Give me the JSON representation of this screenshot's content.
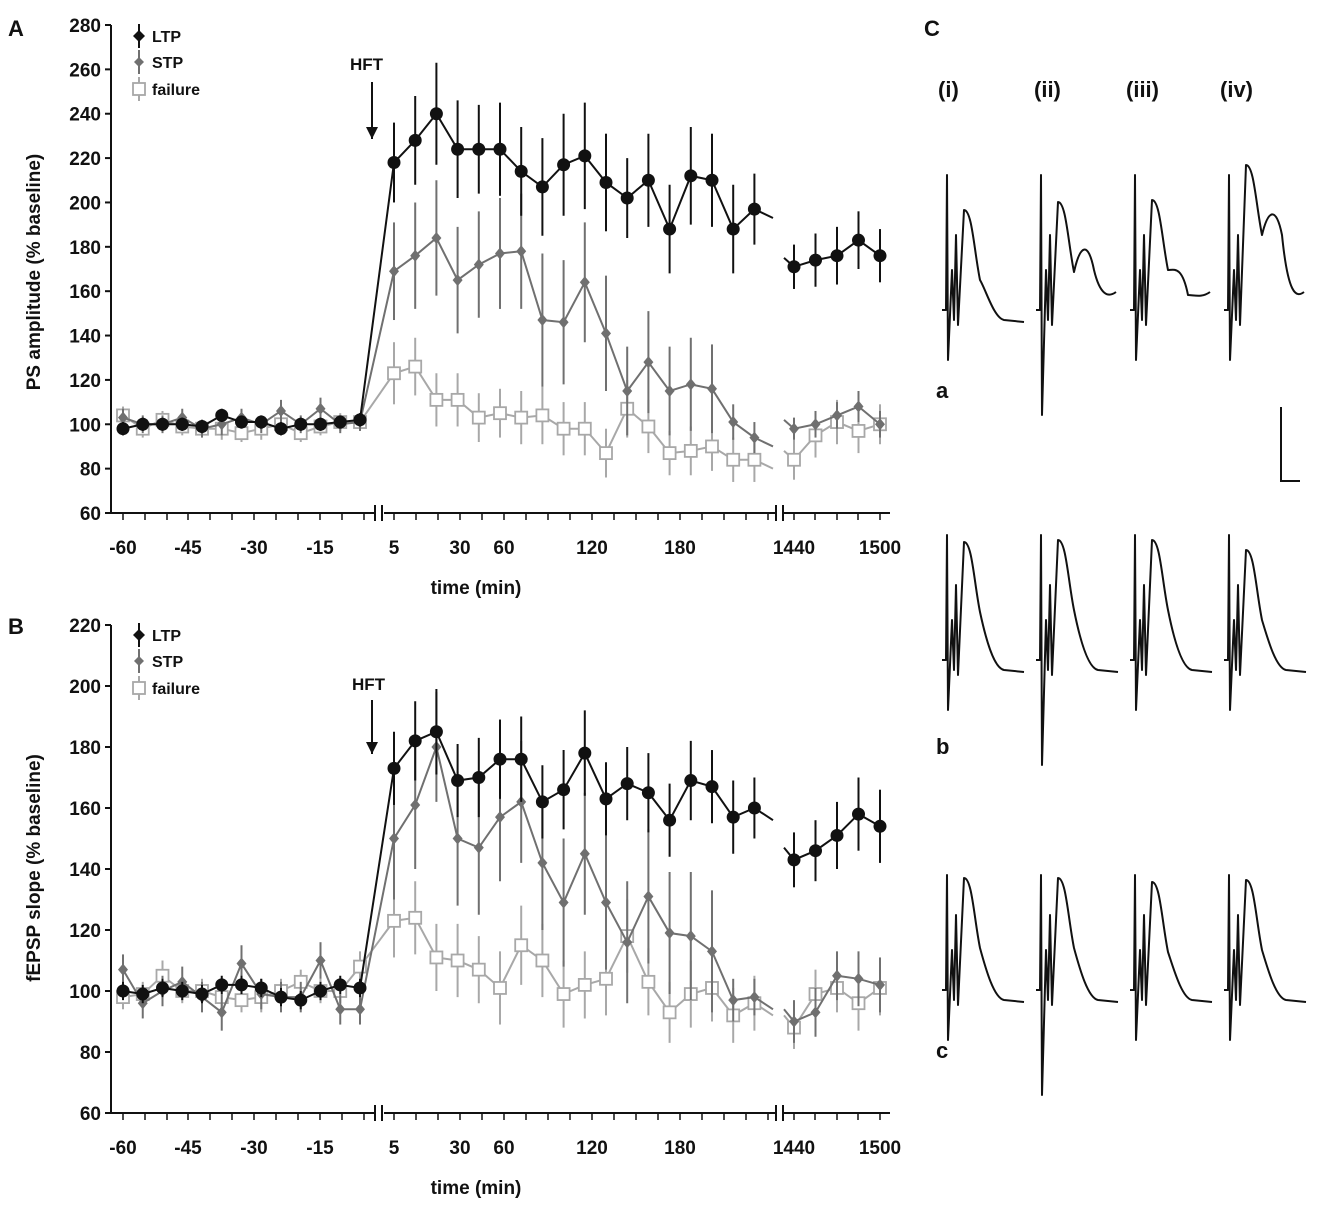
{
  "panels": {
    "A": "A",
    "B": "B",
    "C": "C"
  },
  "colors": {
    "ltp": "#111111",
    "stp": "#707070",
    "failure": "#a8a8a8"
  },
  "chart_data": [
    {
      "type": "line",
      "panel": "A",
      "ylabel": "PS amplitude (% baseline)",
      "xlabel": "time (min)",
      "ylim": [
        60,
        280
      ],
      "yticks": [
        60,
        80,
        100,
        120,
        140,
        160,
        180,
        200,
        220,
        240,
        260,
        280
      ],
      "xtick_labels": [
        "-60",
        "-45",
        "-30",
        "-15",
        "5",
        "30",
        "60",
        "120",
        "180",
        "1440",
        "1500"
      ],
      "annotation": "HFT",
      "legend": [
        "LTP",
        "STP",
        "failure"
      ],
      "series": [
        {
          "name": "LTP",
          "baseline": [
            98,
            100,
            100,
            100,
            99,
            104,
            101,
            101,
            98,
            100,
            100,
            101,
            102
          ],
          "baseline_err": [
            3,
            3,
            3,
            3,
            3,
            3,
            3,
            3,
            3,
            3,
            3,
            3,
            3
          ],
          "post": [
            218,
            228,
            240,
            224,
            224,
            224,
            214,
            207,
            217,
            221,
            209,
            202,
            210,
            188,
            212,
            210,
            188,
            197
          ],
          "post_err": [
            18,
            20,
            23,
            22,
            20,
            21,
            20,
            22,
            23,
            24,
            22,
            18,
            21,
            20,
            22,
            21,
            20,
            16
          ],
          "late": [
            171,
            174,
            176,
            183,
            176
          ],
          "late_err": [
            10,
            12,
            13,
            13,
            12
          ]
        },
        {
          "name": "STP",
          "baseline": [
            103,
            100,
            100,
            103,
            98,
            100,
            103,
            100,
            106,
            100,
            107,
            100,
            101
          ],
          "baseline_err": [
            4,
            4,
            4,
            4,
            4,
            5,
            4,
            4,
            5,
            4,
            5,
            4,
            4
          ],
          "post": [
            169,
            176,
            184,
            165,
            172,
            177,
            178,
            147,
            146,
            164,
            141,
            115,
            128,
            115,
            118,
            116,
            101,
            94
          ],
          "post_err": [
            22,
            24,
            26,
            24,
            24,
            25,
            26,
            30,
            28,
            27,
            26,
            20,
            23,
            20,
            21,
            20,
            8,
            7
          ],
          "late": [
            98,
            100,
            104,
            108,
            100
          ],
          "late_err": [
            5,
            6,
            6,
            7,
            6
          ]
        },
        {
          "name": "failure",
          "baseline": [
            104,
            98,
            102,
            99,
            98,
            98,
            96,
            98,
            100,
            96,
            99,
            101,
            101
          ],
          "baseline_err": [
            4,
            4,
            4,
            4,
            4,
            5,
            4,
            5,
            4,
            4,
            4,
            4,
            4
          ],
          "post": [
            123,
            126,
            111,
            111,
            103,
            105,
            103,
            104,
            98,
            98,
            87,
            107,
            99,
            87,
            88,
            90,
            84,
            84
          ],
          "post_err": [
            14,
            13,
            12,
            12,
            11,
            11,
            12,
            13,
            12,
            12,
            11,
            13,
            12,
            10,
            11,
            11,
            10,
            10
          ],
          "late": [
            84,
            95,
            101,
            97,
            100
          ],
          "late_err": [
            9,
            10,
            10,
            10,
            9
          ]
        }
      ]
    },
    {
      "type": "line",
      "panel": "B",
      "ylabel": "fEPSP slope (% baseline)",
      "xlabel": "time (min)",
      "ylim": [
        60,
        220
      ],
      "yticks": [
        60,
        80,
        100,
        120,
        140,
        160,
        180,
        200,
        220
      ],
      "xtick_labels": [
        "-60",
        "-45",
        "-30",
        "-15",
        "5",
        "30",
        "60",
        "120",
        "180",
        "1440",
        "1500"
      ],
      "annotation": "HFT",
      "legend": [
        "LTP",
        "STP",
        "failure"
      ],
      "series": [
        {
          "name": "LTP",
          "baseline": [
            100,
            99,
            101,
            100,
            99,
            102,
            102,
            101,
            98,
            97,
            100,
            102,
            101
          ],
          "baseline_err": [
            3,
            3,
            3,
            3,
            3,
            3,
            3,
            3,
            3,
            3,
            3,
            3,
            3
          ],
          "post": [
            173,
            182,
            185,
            169,
            170,
            176,
            176,
            162,
            166,
            178,
            163,
            168,
            165,
            156,
            169,
            167,
            157,
            160
          ],
          "post_err": [
            12,
            13,
            14,
            12,
            13,
            13,
            14,
            12,
            13,
            14,
            12,
            12,
            13,
            12,
            13,
            12,
            12,
            10
          ],
          "late": [
            143,
            146,
            151,
            158,
            154
          ],
          "late_err": [
            9,
            10,
            11,
            12,
            12
          ]
        },
        {
          "name": "STP",
          "baseline": [
            107,
            96,
            100,
            103,
            98,
            93,
            109,
            99,
            98,
            98,
            110,
            94,
            94
          ],
          "baseline_err": [
            5,
            5,
            5,
            5,
            5,
            6,
            6,
            5,
            5,
            5,
            6,
            5,
            5
          ],
          "post": [
            150,
            161,
            180,
            150,
            147,
            157,
            162,
            142,
            129,
            145,
            129,
            116,
            131,
            119,
            118,
            113,
            97,
            98
          ],
          "post_err": [
            20,
            21,
            18,
            22,
            22,
            21,
            20,
            22,
            21,
            20,
            22,
            20,
            22,
            20,
            21,
            20,
            7,
            6
          ],
          "late": [
            90,
            93,
            105,
            104,
            102
          ],
          "late_err": [
            7,
            8,
            8,
            9,
            9
          ]
        },
        {
          "name": "failure",
          "baseline": [
            98,
            99,
            105,
            100,
            100,
            98,
            97,
            98,
            100,
            103,
            100,
            100,
            108
          ],
          "baseline_err": [
            4,
            4,
            5,
            4,
            4,
            4,
            4,
            5,
            4,
            4,
            4,
            4,
            5
          ],
          "post": [
            123,
            124,
            111,
            110,
            107,
            101,
            115,
            110,
            99,
            102,
            104,
            118,
            103,
            93,
            99,
            101,
            92,
            96
          ],
          "post_err": [
            12,
            12,
            11,
            12,
            11,
            12,
            13,
            12,
            11,
            11,
            12,
            12,
            11,
            10,
            11,
            11,
            9,
            9
          ],
          "late": [
            88,
            99,
            101,
            96,
            101
          ],
          "late_err": [
            7,
            8,
            8,
            9,
            9
          ]
        }
      ]
    }
  ],
  "traces": {
    "columns": [
      "(i)",
      "(ii)",
      "(iii)",
      "(iv)"
    ],
    "rows": [
      "a",
      "b",
      "c"
    ]
  }
}
